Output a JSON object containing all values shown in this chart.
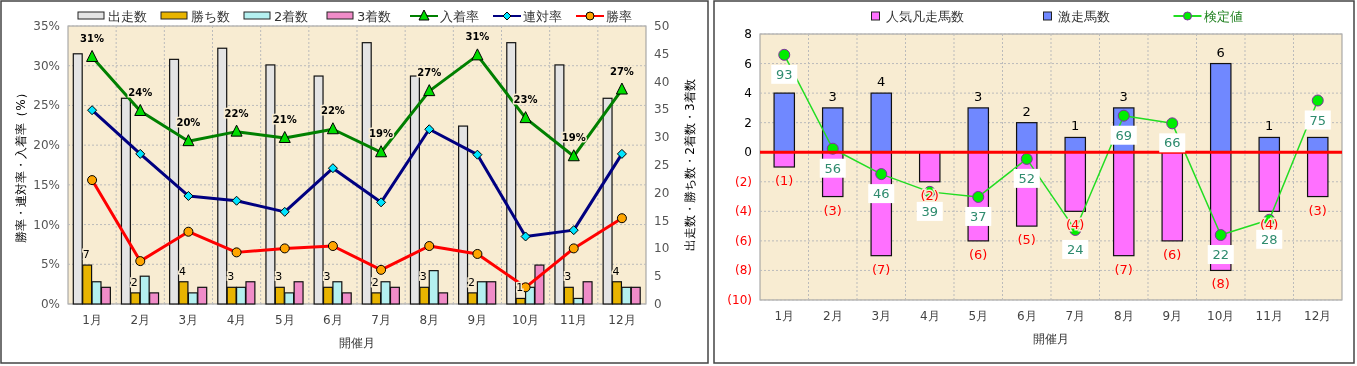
{
  "chart_data": [
    {
      "type": "bar",
      "categories": [
        "1月",
        "2月",
        "3月",
        "4月",
        "5月",
        "6月",
        "7月",
        "8月",
        "9月",
        "10月",
        "11月",
        "12月"
      ],
      "xlabel": "開催月",
      "ylabel": "勝率・連対率・入着率（%）",
      "y2label": "出走数・勝ち数・2着数・3着数",
      "ylim": [
        0,
        35
      ],
      "yticks": [
        {
          "value": 0,
          "label": "0%"
        },
        {
          "value": 5,
          "label": "5%"
        },
        {
          "value": 10,
          "label": "10%"
        },
        {
          "value": 15,
          "label": "15%"
        },
        {
          "value": 20,
          "label": "20%"
        },
        {
          "value": 25,
          "label": "25%"
        },
        {
          "value": 30,
          "label": "30%"
        },
        {
          "value": 35,
          "label": "35%"
        }
      ],
      "y2lim": [
        0,
        50
      ],
      "y2ticks": [
        0,
        5,
        10,
        15,
        20,
        25,
        30,
        35,
        40,
        45,
        50
      ],
      "grid": true,
      "legend": "top",
      "series": [
        {
          "name": "出走数",
          "axis": "y2",
          "color": "#e4e4e4",
          "values": [
            45,
            37,
            44,
            46,
            43,
            41,
            47,
            41,
            32,
            47,
            43,
            37
          ]
        },
        {
          "name": "勝ち数",
          "axis": "y2",
          "color": "#e8b400",
          "values": [
            7,
            2,
            4,
            3,
            3,
            3,
            2,
            3,
            2,
            1,
            3,
            4
          ],
          "value_labels": [
            "7",
            "2",
            "4",
            "3",
            "3",
            "3",
            "2",
            "3",
            "2",
            "1",
            "3",
            "4"
          ]
        },
        {
          "name": "2着数",
          "axis": "y2",
          "color": "#b4f0f0",
          "values": [
            4,
            5,
            2,
            3,
            2,
            4,
            4,
            6,
            4,
            3,
            1,
            3
          ]
        },
        {
          "name": "3着数",
          "axis": "y2",
          "color": "#f08cc8",
          "values": [
            3,
            2,
            3,
            4,
            4,
            2,
            3,
            2,
            4,
            7,
            4,
            3
          ]
        },
        {
          "name": "入着率",
          "type": "line",
          "color": "#008000",
          "marker": "triangle",
          "values": [
            31.1,
            24.3,
            20.5,
            21.7,
            20.9,
            22.0,
            19.1,
            26.8,
            31.3,
            23.4,
            18.6,
            27.0
          ],
          "value_labels": [
            "31%",
            "24%",
            "20%",
            "22%",
            "21%",
            "22%",
            "19%",
            "27%",
            "31%",
            "23%",
            "19%",
            "27%"
          ]
        },
        {
          "name": "連対率",
          "type": "line",
          "color": "#000080",
          "marker": "diamond",
          "values": [
            24.4,
            18.9,
            13.6,
            13.0,
            11.6,
            17.1,
            12.8,
            22.0,
            18.8,
            8.5,
            9.3,
            18.9
          ]
        },
        {
          "name": "勝率",
          "type": "line",
          "color": "#ff0000",
          "marker": "circle",
          "values": [
            15.6,
            5.4,
            9.1,
            6.5,
            7.0,
            7.3,
            4.3,
            7.3,
            6.3,
            2.1,
            7.0,
            10.8
          ]
        }
      ]
    },
    {
      "type": "bar",
      "categories": [
        "1月",
        "2月",
        "3月",
        "4月",
        "5月",
        "6月",
        "7月",
        "8月",
        "9月",
        "10月",
        "11月",
        "12月"
      ],
      "xlabel": "開催月",
      "ylim": [
        -10,
        8
      ],
      "yticks": [
        8,
        6,
        4,
        2,
        0,
        {
          "value": -2,
          "label": "(2)"
        },
        {
          "value": -4,
          "label": "(4)"
        },
        {
          "value": -6,
          "label": "(6)"
        },
        {
          "value": -8,
          "label": "(8)"
        },
        {
          "value": -10,
          "label": "(10)"
        }
      ],
      "y2lim": [
        -3.6,
        101.2
      ],
      "stacked": true,
      "grid": true,
      "legend": "top",
      "ref_lines": [
        {
          "axis": "y",
          "value": 0,
          "color": "#ff0000"
        }
      ],
      "series": [
        {
          "name": "人気凡走馬数",
          "color": "#ff70ff",
          "values": [
            -1,
            -3,
            -7,
            -2,
            -6,
            -5,
            -4,
            -7,
            -6,
            -8,
            -4,
            -3
          ],
          "value_labels": [
            "(1)",
            "(3)",
            "(7)",
            "(2)",
            "(6)",
            "(5)",
            "(4)",
            "(7)",
            "(6)",
            "(8)",
            "(4)",
            "(3)"
          ]
        },
        {
          "name": "激走馬数",
          "color": "#7088ff",
          "values": [
            4,
            3,
            4,
            0,
            3,
            2,
            1,
            3,
            0,
            6,
            1,
            1
          ],
          "value_labels": [
            null,
            "3",
            "4",
            null,
            "3",
            "2",
            "1",
            "3",
            null,
            "6",
            "1",
            null
          ]
        },
        {
          "name": "検定値",
          "type": "line",
          "axis": "y2",
          "color": "#22dd22",
          "marker": "circle",
          "values": [
            93,
            56,
            46,
            39,
            37,
            52,
            24,
            69,
            66,
            22,
            28,
            75
          ],
          "value_labels": [
            "93",
            "56",
            "46",
            "39",
            "37",
            "52",
            "24",
            "69",
            "66",
            "22",
            "28",
            "75"
          ]
        }
      ]
    }
  ]
}
